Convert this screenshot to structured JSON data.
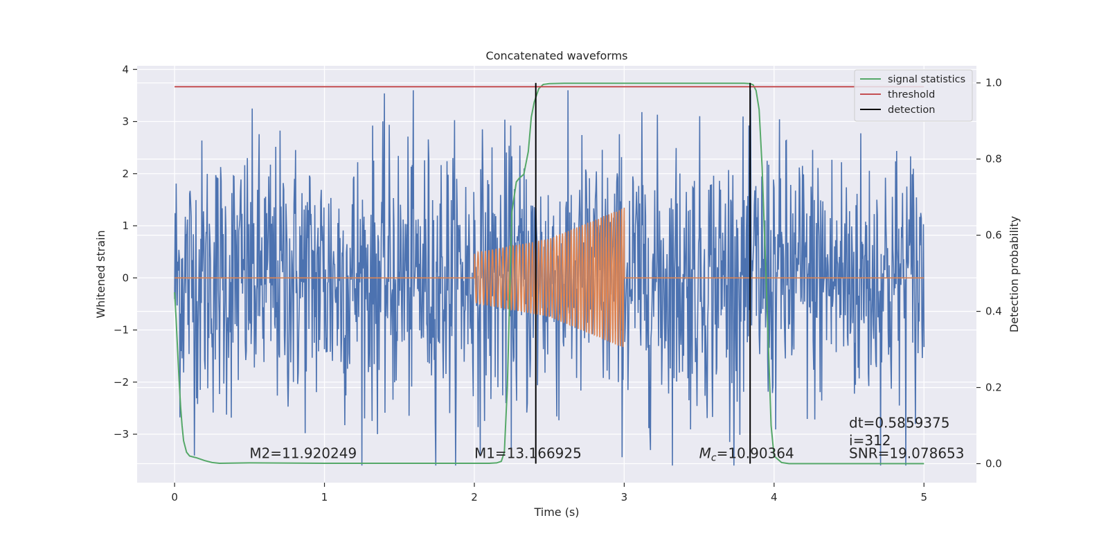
{
  "chart_data": {
    "type": "line",
    "title": "Concatenated waveforms",
    "xlabel": "Time (s)",
    "ylabel": "Whitened strain",
    "y2label": "Detection probability",
    "xlim": [
      -0.25,
      5.35
    ],
    "ylim": [
      -3.93,
      4.07
    ],
    "y2lim": [
      -0.05,
      1.045
    ],
    "grid": true,
    "legend_position": "top-right",
    "x_ticks": [
      0,
      1,
      2,
      3,
      4,
      5
    ],
    "y_ticks": [
      -3,
      -2,
      -1,
      0,
      1,
      2,
      3,
      4
    ],
    "y2_ticks": [
      0.0,
      0.2,
      0.4,
      0.6,
      0.8,
      1.0
    ],
    "x_tick_labels": [
      "0",
      "1",
      "2",
      "3",
      "4",
      "5"
    ],
    "y_tick_labels": [
      "−3",
      "−2",
      "−1",
      "0",
      "1",
      "2",
      "3",
      "4"
    ],
    "y2_tick_labels": [
      "0.0",
      "0.2",
      "0.4",
      "0.6",
      "0.8",
      "1.0"
    ],
    "series": [
      {
        "name": "",
        "axis": "left",
        "color": "#4c72b0",
        "kind": "noise",
        "x_range": [
          0,
          5
        ],
        "typical_amplitude": 1.3,
        "extreme_range": [
          -3.6,
          3.6
        ]
      },
      {
        "name": "",
        "axis": "left",
        "color": "#dd8452",
        "kind": "chirp",
        "x": [
          0,
          2,
          2,
          2.5,
          3,
          3,
          5
        ],
        "envelope": [
          0,
          0,
          0.48,
          0.75,
          1.35,
          0,
          0
        ]
      },
      {
        "name": "signal statistics",
        "axis": "right",
        "color": "#55a868",
        "x": [
          0,
          0.01,
          0.02,
          0.03,
          0.04,
          0.05,
          0.06,
          0.08,
          0.1,
          0.12,
          0.15,
          0.2,
          0.25,
          0.3,
          0.5,
          1.0,
          1.5,
          2.0,
          2.1,
          2.15,
          2.18,
          2.2,
          2.22,
          2.25,
          2.28,
          2.3,
          2.33,
          2.36,
          2.38,
          2.4,
          2.43,
          2.46,
          2.5,
          2.6,
          3.0,
          3.5,
          3.8,
          3.84,
          3.86,
          3.88,
          3.9,
          3.92,
          3.95,
          3.98,
          4.0,
          4.05,
          4.1,
          4.5,
          5.0
        ],
        "y": [
          0.45,
          0.38,
          0.3,
          0.22,
          0.15,
          0.1,
          0.06,
          0.03,
          0.02,
          0.018,
          0.015,
          0.008,
          0.003,
          0.001,
          0.002,
          0.001,
          0.001,
          0.001,
          0.001,
          0.002,
          0.006,
          0.03,
          0.2,
          0.66,
          0.74,
          0.75,
          0.76,
          0.82,
          0.91,
          0.95,
          0.985,
          0.996,
          0.998,
          0.999,
          0.999,
          0.999,
          0.999,
          0.998,
          0.995,
          0.98,
          0.93,
          0.78,
          0.45,
          0.1,
          0.02,
          0.003,
          0.0,
          0.0,
          0.0
        ]
      },
      {
        "name": "threshold",
        "axis": "right",
        "color": "#c44e52",
        "x": [
          0,
          5
        ],
        "y": [
          0.99,
          0.99
        ]
      },
      {
        "name": "detection",
        "axis": "right",
        "color": "#000000",
        "kind": "vlines",
        "x": [
          2.41,
          3.84
        ],
        "y_range": [
          0,
          1.0
        ]
      }
    ],
    "annotations": [
      {
        "text": "M2=11.920249",
        "x": 0.5,
        "y": 0.015
      },
      {
        "text": "M1=13.166925",
        "x": 2.0,
        "y": 0.015
      },
      {
        "text": "Mc=10.90364",
        "display_main": "M",
        "display_sub": "c",
        "display_rest": "=10.90364",
        "x": 3.5,
        "y": 0.015
      },
      {
        "text": "SNR=19.078653",
        "x": 4.5,
        "y": 0.015
      },
      {
        "text": "dt=0.5859375",
        "x": 4.5,
        "y": 0.095
      },
      {
        "text": " i=312",
        "x": 4.5,
        "y": 0.048
      }
    ]
  }
}
